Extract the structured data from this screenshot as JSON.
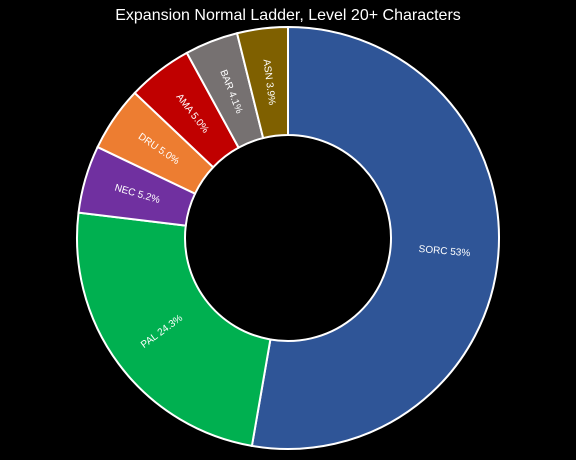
{
  "chart_data": {
    "type": "pie",
    "title": "Expansion Normal Ladder, Level 20+ Characters",
    "donut": true,
    "legend": "none",
    "slices": [
      {
        "label": "SORC 53%",
        "short": "SORC",
        "value": 53.0,
        "color": "#2f5597"
      },
      {
        "label": "PAL 24.3%",
        "short": "PAL",
        "value": 24.3,
        "color": "#00b050"
      },
      {
        "label": "NEC 5.2%",
        "short": "NEC",
        "value": 5.2,
        "color": "#7030a0"
      },
      {
        "label": "DRU 5.0%",
        "short": "DRU",
        "value": 5.0,
        "color": "#ed7d31"
      },
      {
        "label": "AMA 5.0%",
        "short": "AMA",
        "value": 5.0,
        "color": "#c00000"
      },
      {
        "label": "BAR 4.1%",
        "short": "BAR",
        "value": 4.1,
        "color": "#767171"
      },
      {
        "label": "ASN 3.9%",
        "short": "ASN",
        "value": 3.9,
        "color": "#7f6000"
      }
    ]
  }
}
